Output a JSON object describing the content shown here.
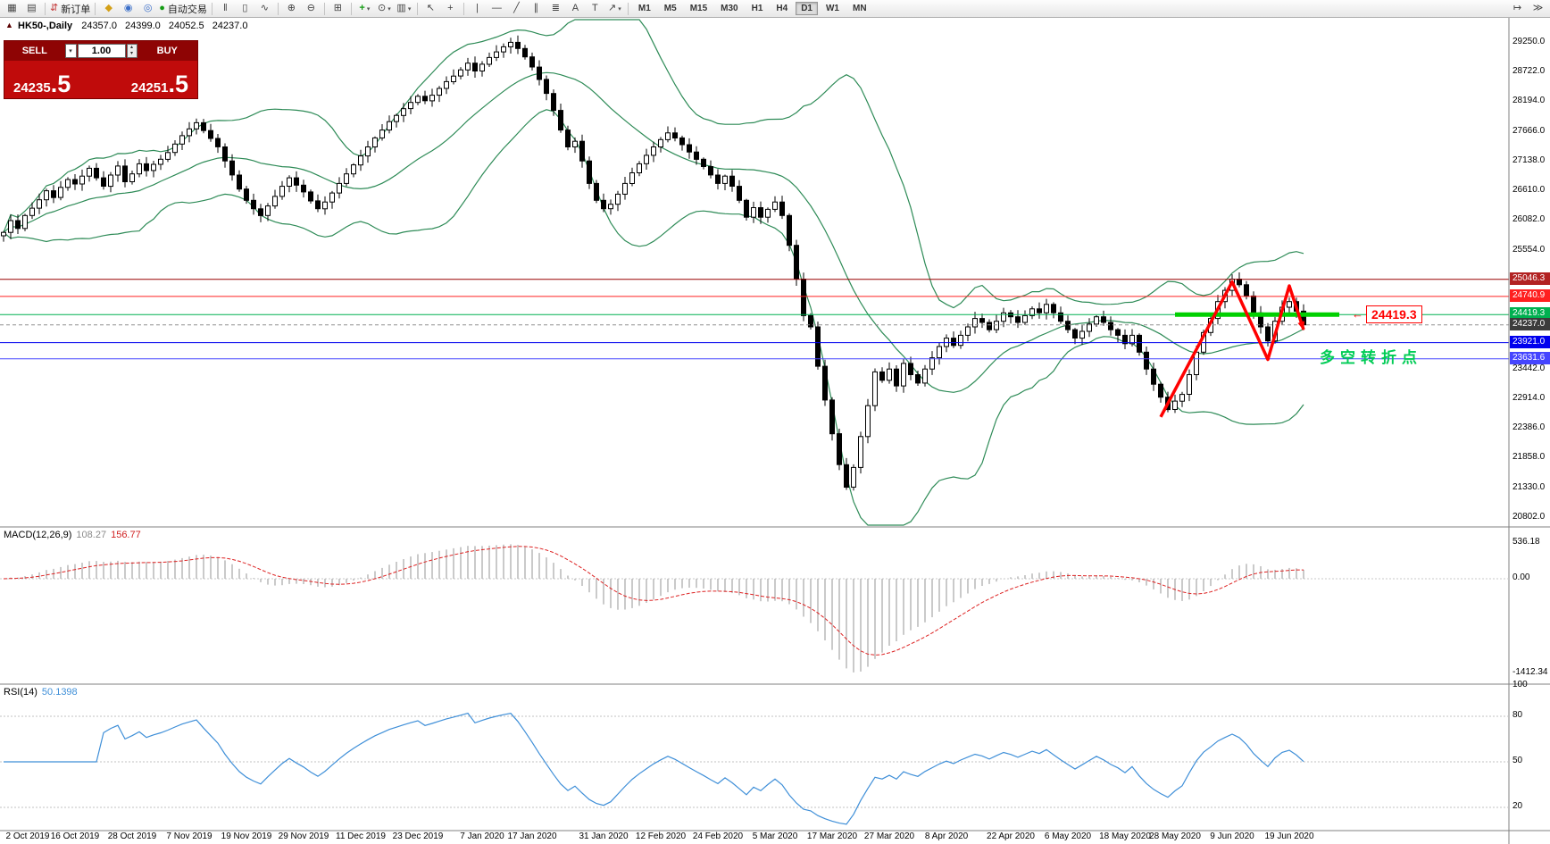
{
  "toolbar": {
    "new_order_label": "新订单",
    "autotrading_label": "自动交易",
    "timeframes": [
      "M1",
      "M5",
      "M15",
      "M30",
      "H1",
      "H4",
      "D1",
      "W1",
      "MN"
    ],
    "active_timeframe": "D1"
  },
  "icons": {
    "new_chart": "▦",
    "profiles": "▤",
    "new_order": "⇵",
    "quotes": "◆",
    "data_window": "◉",
    "navigator": "◎",
    "autotrading_dot": "●",
    "bars_chart": "‖",
    "candles_chart": "▯",
    "line_chart": "∿",
    "zoom_in": "⊕",
    "zoom_out": "⊖",
    "tile_windows": "⊞",
    "indicators": "+",
    "periods": "⊙",
    "templates": "▥",
    "dropdown": "▾",
    "cursor": "↖",
    "crosshair": "+",
    "vline": "|",
    "hline": "—",
    "trendline": "╱",
    "channel": "∥",
    "fibonacci": "≣",
    "text_tool": "A",
    "label_tool": "T",
    "arrows_tool": "↗",
    "chart_shift": "↦",
    "scroll_end": "≫",
    "spinner_up": "▴",
    "spinner_down": "▾",
    "collapse": "▲",
    "callout_arrow": "←"
  },
  "chart_header": {
    "symbol": "HK50-,Daily",
    "open": "24357.0",
    "high": "24399.0",
    "low": "24052.5",
    "close": "24237.0"
  },
  "trade_panel": {
    "sell_label": "SELL",
    "buy_label": "BUY",
    "volume": "1.00",
    "sell_price_main": "24235",
    "sell_price_frac": ".5",
    "buy_price_main": "24251",
    "buy_price_frac": ".5"
  },
  "price_axis": {
    "regular": [
      29250.0,
      28722.0,
      28194.0,
      27666.0,
      27138.0,
      26610.0,
      26082.0,
      25554.0,
      23442.0,
      22914.0,
      22386.0,
      21858.0,
      21330.0,
      20802.0
    ],
    "special": [
      {
        "text": "25046.3",
        "price": 25046.3,
        "bg": "#b22222"
      },
      {
        "text": "24740.9",
        "price": 24740.9,
        "bg": "#ff2020"
      },
      {
        "text": "24419.3",
        "price": 24419.3,
        "bg": "#00b050"
      },
      {
        "text": "24237.0",
        "price": 24237.0,
        "bg": "#3c3c3c"
      },
      {
        "text": "23921.0",
        "price": 23921.0,
        "bg": "#0000ee"
      },
      {
        "text": "23631.6",
        "price": 23631.6,
        "bg": "#4545ff"
      }
    ]
  },
  "hlines": [
    {
      "price": 25046.3,
      "color": "#990000",
      "dash": ""
    },
    {
      "price": 24740.9,
      "color": "#ff2020",
      "dash": ""
    },
    {
      "price": 24419.3,
      "color": "#00b050",
      "dash": ""
    },
    {
      "price": 24237.0,
      "color": "#909090",
      "dash": "4 3"
    },
    {
      "price": 23921.0,
      "color": "#0000ee",
      "dash": ""
    },
    {
      "price": 23631.6,
      "color": "#4545ff",
      "dash": ""
    }
  ],
  "annotations": {
    "support_segment": {
      "price": 24419.3,
      "from_idx": 164,
      "to_idx": 187,
      "color": "#00d000",
      "width": 5
    },
    "price_callout": {
      "text": "24419.3",
      "color": "#ff0000"
    },
    "turning_point": {
      "text": "多空转折点",
      "color": "#00cc55"
    },
    "trend_path": {
      "color": "#ff0000",
      "points": [
        {
          "idx": 162,
          "price": 22600
        },
        {
          "idx": 172,
          "price": 25000
        },
        {
          "idx": 177,
          "price": 23620
        },
        {
          "idx": 180,
          "price": 24930
        },
        {
          "idx": 182,
          "price": 24150
        }
      ]
    }
  },
  "indicators": {
    "macd": {
      "name": "MACD(12,26,9)",
      "value_main": "108.27",
      "value_signal": "156.77",
      "scale": [
        {
          "text": "536.18",
          "value": 536.18
        },
        {
          "text": "0.00",
          "value": 0
        },
        {
          "text": "-1412.34",
          "value": -1412.34
        }
      ]
    },
    "rsi": {
      "name": "RSI(14)",
      "value": "50.1398",
      "scale": [
        {
          "text": "100",
          "value": 100
        },
        {
          "text": "80",
          "value": 80
        },
        {
          "text": "50",
          "value": 50
        },
        {
          "text": "20",
          "value": 20
        }
      ],
      "levels": [
        80,
        50,
        20
      ]
    }
  },
  "date_axis": [
    {
      "label": "2 Oct 2019",
      "idx": 0
    },
    {
      "label": "16 Oct 2019",
      "idx": 10
    },
    {
      "label": "28 Oct 2019",
      "idx": 18
    },
    {
      "label": "7 Nov 2019",
      "idx": 26
    },
    {
      "label": "19 Nov 2019",
      "idx": 34
    },
    {
      "label": "29 Nov 2019",
      "idx": 42
    },
    {
      "label": "11 Dec 2019",
      "idx": 50
    },
    {
      "label": "23 Dec 2019",
      "idx": 58
    },
    {
      "label": "7 Jan 2020",
      "idx": 67
    },
    {
      "label": "17 Jan 2020",
      "idx": 74
    },
    {
      "label": "31 Jan 2020",
      "idx": 84
    },
    {
      "label": "12 Feb 2020",
      "idx": 92
    },
    {
      "label": "24 Feb 2020",
      "idx": 100
    },
    {
      "label": "5 Mar 2020",
      "idx": 108
    },
    {
      "label": "17 Mar 2020",
      "idx": 116
    },
    {
      "label": "27 Mar 2020",
      "idx": 124
    },
    {
      "label": "8 Apr 2020",
      "idx": 132
    },
    {
      "label": "22 Apr 2020",
      "idx": 141
    },
    {
      "label": "6 May 2020",
      "idx": 149
    },
    {
      "label": "18 May 2020",
      "idx": 157
    },
    {
      "label": "28 May 2020",
      "idx": 164
    },
    {
      "label": "9 Jun 2020",
      "idx": 172
    },
    {
      "label": "19 Jun 2020",
      "idx": 180
    }
  ],
  "chart_data": {
    "type": "candlestick",
    "symbol": "HK50",
    "timeframe": "Daily",
    "overlays": [
      "Bollinger Bands (20,2)"
    ],
    "colors": {
      "bull": "#ffffff",
      "bear": "#000000",
      "wick": "#000000",
      "band": "#2e8b57",
      "macd_hist": "#b8b8b8",
      "macd_signal": "#dd2222",
      "rsi_line": "#3f8fd8"
    },
    "closes": [
      25880,
      26090,
      25950,
      26180,
      26310,
      26460,
      26620,
      26500,
      26680,
      26820,
      26740,
      26880,
      27020,
      26850,
      26700,
      26900,
      27060,
      26780,
      26920,
      27100,
      26980,
      27090,
      27180,
      27300,
      27450,
      27600,
      27720,
      27830,
      27690,
      27550,
      27400,
      27150,
      26900,
      26650,
      26450,
      26300,
      26180,
      26350,
      26520,
      26700,
      26850,
      26720,
      26600,
      26440,
      26300,
      26420,
      26580,
      26750,
      26920,
      27080,
      27240,
      27400,
      27560,
      27700,
      27850,
      27960,
      28080,
      28190,
      28300,
      28220,
      28320,
      28440,
      28560,
      28660,
      28770,
      28890,
      28750,
      28870,
      28990,
      29090,
      29180,
      29260,
      29150,
      29000,
      28820,
      28600,
      28350,
      28050,
      27700,
      27400,
      27500,
      27150,
      26750,
      26450,
      26300,
      26380,
      26560,
      26750,
      26940,
      27100,
      27250,
      27400,
      27530,
      27650,
      27560,
      27440,
      27310,
      27180,
      27050,
      26900,
      26750,
      26880,
      26700,
      26450,
      26150,
      26320,
      26150,
      26290,
      26420,
      26180,
      25650,
      25050,
      24400,
      24200,
      23500,
      22900,
      22300,
      21750,
      21350,
      21700,
      22250,
      22800,
      23400,
      23250,
      23450,
      23150,
      23550,
      23350,
      23200,
      23450,
      23650,
      23850,
      24000,
      23870,
      24050,
      24200,
      24350,
      24280,
      24150,
      24300,
      24450,
      24380,
      24280,
      24400,
      24520,
      24450,
      24600,
      24450,
      24300,
      24150,
      24000,
      24120,
      24250,
      24380,
      24280,
      24150,
      24050,
      23900,
      24050,
      23750,
      23450,
      23180,
      22950,
      22730,
      22880,
      23000,
      23350,
      23750,
      24100,
      24350,
      24650,
      24850,
      25050,
      24950,
      24750,
      24450,
      24200,
      23950,
      24300,
      24550,
      24650,
      24480,
      24237
    ]
  }
}
